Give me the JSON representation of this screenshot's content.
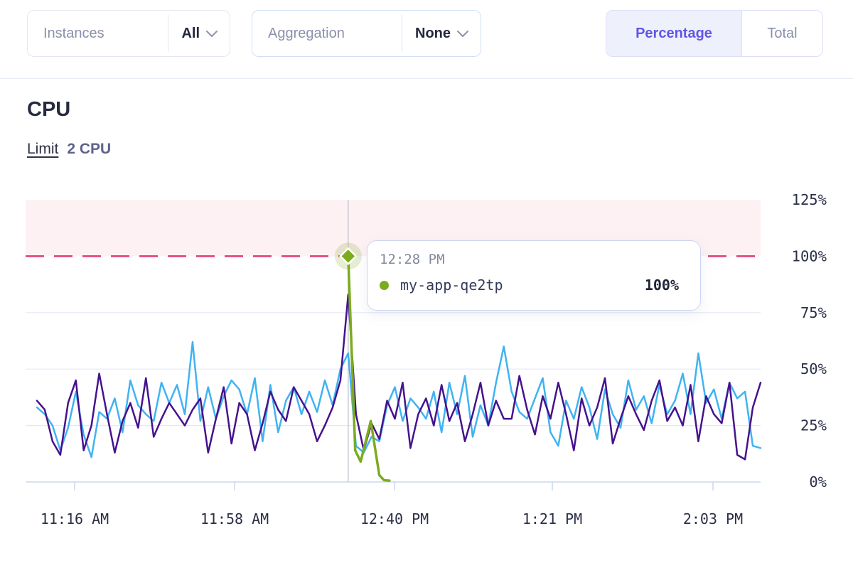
{
  "header": {
    "instances": {
      "label": "Instances",
      "value": "All"
    },
    "aggregation": {
      "label": "Aggregation",
      "value": "None"
    },
    "view_toggle": {
      "options": [
        "Percentage",
        "Total"
      ],
      "selected": "Percentage"
    }
  },
  "section": {
    "title": "CPU",
    "limit_label": "Limit",
    "limit_value": "2 CPU"
  },
  "tooltip": {
    "time": "12:28 PM",
    "series": "my-app-qe2tp",
    "value": "100%"
  },
  "colors": {
    "series_blue": "#3fb3f2",
    "series_purple": "#45128e",
    "series_green": "#7cab1f",
    "limit_line": "#e23a70",
    "limit_zone": "#fdf1f4",
    "grid": "#e3e9f4",
    "axis": "#c9d8ee",
    "crosshair": "#c7c9d1",
    "tick_text": "#2b3047",
    "accent": "#6156e6"
  },
  "chart_data": {
    "type": "line",
    "title": "CPU",
    "unit": "%",
    "ylim": [
      0,
      125
    ],
    "grid": true,
    "legend_position": "none",
    "y_tick_values": [
      125,
      100,
      75,
      50,
      25,
      0
    ],
    "y_tick_labels": [
      "125%",
      "100%",
      "75%",
      "50%",
      "25%",
      "0%"
    ],
    "x_tick_labels": [
      "11:16 AM",
      "11:58 AM",
      "12:40 PM",
      "1:21 PM",
      "2:03 PM"
    ],
    "limit_pct": 100,
    "hover": {
      "index": 40,
      "time": "12:28 PM",
      "series": "my-app-qe2tp",
      "value_pct": 100
    },
    "series": [
      {
        "name": "instance-blue",
        "color_key": "series_blue",
        "values": [
          33,
          30,
          25,
          14,
          24,
          40,
          21,
          11,
          31,
          28,
          37,
          22,
          45,
          34,
          30,
          27,
          44,
          35,
          43,
          30,
          62,
          27,
          42,
          28,
          38,
          45,
          41,
          30,
          46,
          18,
          43,
          22,
          36,
          42,
          30,
          40,
          31,
          45,
          34,
          50,
          57,
          16,
          13,
          20,
          18,
          34,
          42,
          27,
          37,
          33,
          28,
          40,
          22,
          44,
          30,
          47,
          20,
          34,
          25,
          44,
          60,
          40,
          31,
          28,
          37,
          46,
          22,
          16,
          36,
          28,
          42,
          33,
          19,
          41,
          30,
          24,
          45,
          32,
          38,
          26,
          43,
          30,
          36,
          48,
          30,
          57,
          35,
          41,
          28,
          44,
          37,
          40,
          16,
          15
        ]
      },
      {
        "name": "instance-purple",
        "color_key": "series_purple",
        "values": [
          36,
          32,
          18,
          12,
          35,
          45,
          14,
          25,
          48,
          30,
          13,
          27,
          35,
          24,
          46,
          20,
          28,
          35,
          30,
          25,
          32,
          37,
          13,
          28,
          42,
          17,
          35,
          30,
          14,
          26,
          40,
          32,
          27,
          42,
          36,
          30,
          18,
          25,
          33,
          45,
          83,
          30,
          14,
          26,
          19,
          36,
          28,
          44,
          15,
          30,
          37,
          25,
          43,
          27,
          35,
          18,
          30,
          44,
          25,
          36,
          28,
          28,
          47,
          32,
          21,
          38,
          28,
          44,
          30,
          14,
          37,
          25,
          33,
          46,
          17,
          28,
          38,
          30,
          23,
          36,
          45,
          27,
          33,
          25,
          43,
          18,
          38,
          30,
          26,
          44,
          12,
          10,
          33,
          44
        ]
      },
      {
        "name": "my-app-qe2tp",
        "color_key": "series_green",
        "points": [
          [
            40,
            100
          ],
          [
            40.9,
            14
          ],
          [
            41.6,
            9
          ],
          [
            42.9,
            27
          ],
          [
            44.0,
            3
          ],
          [
            44.6,
            0.8
          ],
          [
            45.3,
            0.6
          ]
        ]
      }
    ]
  }
}
